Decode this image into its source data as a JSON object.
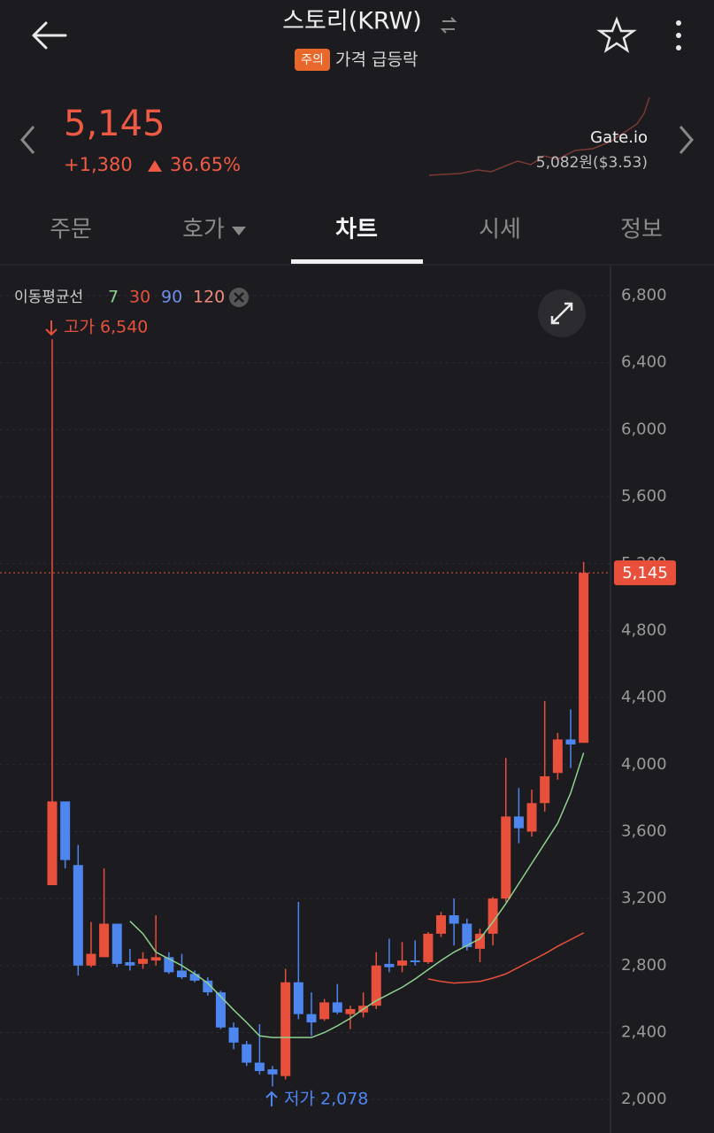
{
  "header": {
    "title": "스토리(KRW)",
    "badge": "주의",
    "warning": "가격 급등락"
  },
  "price": {
    "value": "5,145",
    "change": "+1,380",
    "rate": "36.65%",
    "exchange": "Gate.io",
    "exchange_price": "5,082원($3.53)"
  },
  "tabs": [
    "주문",
    "호가",
    "차트",
    "시세",
    "정보"
  ],
  "chart_data": {
    "type": "candlestick",
    "legend_title": "이동평균선",
    "up_color": "#e8503c",
    "down_color": "#4e86f0",
    "open": [
      3280,
      3780,
      3400,
      2800,
      2850,
      3050,
      2820,
      2810,
      2830,
      2850,
      2770,
      2750,
      2710,
      2640,
      2430,
      2330,
      2220,
      2180,
      2140,
      2700,
      2510,
      2480,
      2580,
      2510,
      2520,
      2560,
      2810,
      2800,
      2830,
      2820,
      2990,
      3100,
      3050,
      2900,
      2990,
      3200,
      3690,
      3600,
      3770,
      3950,
      4150,
      4130
    ],
    "high": [
      6540,
      3780,
      3520,
      3060,
      3380,
      3050,
      2900,
      2880,
      3100,
      2880,
      2870,
      2770,
      2730,
      2650,
      2460,
      2350,
      2450,
      2200,
      2780,
      3180,
      2640,
      2600,
      2690,
      2560,
      2640,
      2880,
      2960,
      2940,
      2950,
      3000,
      3120,
      3200,
      3080,
      3020,
      3210,
      4040,
      3860,
      3850,
      4380,
      4190,
      4330,
      5210
    ],
    "low": [
      3280,
      3380,
      2740,
      2790,
      2850,
      2790,
      2770,
      2780,
      2800,
      2750,
      2720,
      2700,
      2620,
      2420,
      2300,
      2200,
      2150,
      2078,
      2120,
      2480,
      2380,
      2470,
      2510,
      2420,
      2490,
      2540,
      2760,
      2760,
      2800,
      2810,
      2970,
      2920,
      2890,
      2820,
      2920,
      3180,
      3530,
      3570,
      3720,
      3910,
      3980,
      4130
    ],
    "close": [
      3780,
      3430,
      2800,
      2870,
      3050,
      2810,
      2800,
      2840,
      2850,
      2760,
      2730,
      2710,
      2640,
      2430,
      2340,
      2220,
      2170,
      2150,
      2700,
      2510,
      2460,
      2580,
      2520,
      2540,
      2560,
      2800,
      2790,
      2830,
      2820,
      2990,
      3100,
      3050,
      2910,
      2990,
      3200,
      3690,
      3620,
      3770,
      3930,
      4150,
      4120,
      5145
    ],
    "series": [
      {
        "name": "7",
        "color": "#8fd18f",
        "values": [
          null,
          null,
          null,
          null,
          null,
          null,
          3065,
          2990,
          2880,
          2840,
          2800,
          2750,
          2695,
          2615,
          2535,
          2460,
          2380,
          2370,
          2370,
          2370,
          2370,
          2400,
          2440,
          2485,
          2540,
          2590,
          2630,
          2670,
          2720,
          2775,
          2830,
          2880,
          2920,
          2960,
          3060,
          3170,
          3290,
          3410,
          3530,
          3650,
          3830,
          4070
        ]
      },
      {
        "name": "30",
        "color": "#e8503c",
        "values": [
          null,
          null,
          null,
          null,
          null,
          null,
          null,
          null,
          null,
          null,
          null,
          null,
          null,
          null,
          null,
          null,
          null,
          null,
          null,
          null,
          null,
          null,
          null,
          null,
          null,
          null,
          null,
          null,
          null,
          2720,
          2705,
          2695,
          2700,
          2705,
          2725,
          2750,
          2790,
          2830,
          2870,
          2915,
          2955,
          2995
        ]
      },
      {
        "name": "90",
        "color": "#6f8fe8",
        "values": []
      },
      {
        "name": "120",
        "color": "#f08a7a",
        "values": []
      }
    ],
    "ylim": [
      1800,
      6980
    ],
    "yticks": [
      {
        "value": 2000,
        "label": "2,000"
      },
      {
        "value": 2400,
        "label": "2,400"
      },
      {
        "value": 2800,
        "label": "2,800"
      },
      {
        "value": 3200,
        "label": "3,200"
      },
      {
        "value": 3600,
        "label": "3,600"
      },
      {
        "value": 4000,
        "label": "4,000"
      },
      {
        "value": 4400,
        "label": "4,400"
      },
      {
        "value": 4800,
        "label": "4,800"
      },
      {
        "value": 5200,
        "label": "5,200"
      },
      {
        "value": 5600,
        "label": "5,600"
      },
      {
        "value": 6000,
        "label": "6,000"
      },
      {
        "value": 6400,
        "label": "6,400"
      },
      {
        "value": 6800,
        "label": "6,800"
      }
    ],
    "grid": true,
    "current": {
      "value": 5145,
      "label": "5,145"
    },
    "high_label": "고가 6,540",
    "low_label": "저가 2,078"
  }
}
